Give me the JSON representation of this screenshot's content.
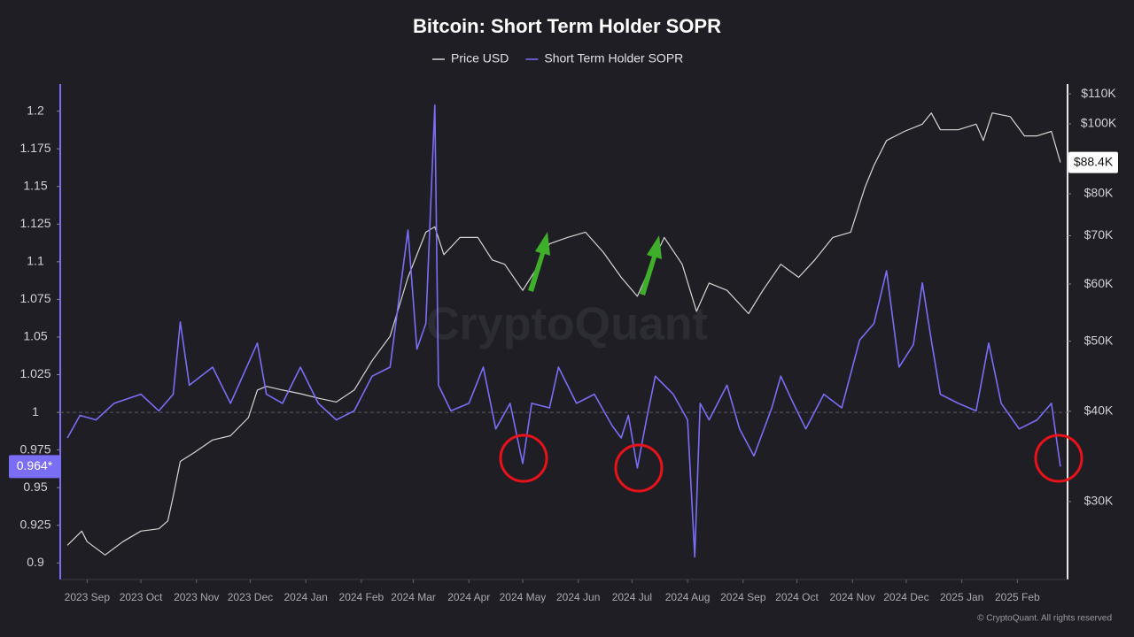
{
  "chart_data": {
    "type": "line",
    "title": "Bitcoin: Short Term Holder SOPR",
    "watermark": "CryptoQuant",
    "footer": "© CryptoQuant. All rights reserved",
    "background": "#1e1e24",
    "xlim": [
      -15,
      547
    ],
    "xticks": [
      {
        "value": 0,
        "label": "2023 Sep"
      },
      {
        "value": 30,
        "label": "2023 Oct"
      },
      {
        "value": 61,
        "label": "2023 Nov"
      },
      {
        "value": 91,
        "label": "2023 Dec"
      },
      {
        "value": 122,
        "label": "2024 Jan"
      },
      {
        "value": 153,
        "label": "2024 Feb"
      },
      {
        "value": 182,
        "label": "2024 Mar"
      },
      {
        "value": 213,
        "label": "2024 Apr"
      },
      {
        "value": 243,
        "label": "2024 May"
      },
      {
        "value": 274,
        "label": "2024 Jun"
      },
      {
        "value": 304,
        "label": "2024 Jul"
      },
      {
        "value": 335,
        "label": "2024 Aug"
      },
      {
        "value": 366,
        "label": "2024 Sep"
      },
      {
        "value": 396,
        "label": "2024 Oct"
      },
      {
        "value": 427,
        "label": "2024 Nov"
      },
      {
        "value": 457,
        "label": "2024 Dec"
      },
      {
        "value": 488,
        "label": "2025 Jan"
      },
      {
        "value": 519,
        "label": "2025 Feb"
      }
    ],
    "ylim": [
      0.889,
      1.218
    ],
    "yticks": [
      0.9,
      0.925,
      0.95,
      0.975,
      1,
      1.025,
      1.05,
      1.075,
      1.1,
      1.125,
      1.15,
      1.175,
      1.2
    ],
    "y2lim": [
      23400,
      113500
    ],
    "y2scale": "log",
    "y2ticks": [
      {
        "value": 30000,
        "label": "$30K"
      },
      {
        "value": 40000,
        "label": "$40K"
      },
      {
        "value": 50000,
        "label": "$50K"
      },
      {
        "value": 60000,
        "label": "$60K"
      },
      {
        "value": 70000,
        "label": "$70K"
      },
      {
        "value": 80000,
        "label": "$80K"
      },
      {
        "value": 100000,
        "label": "$100K"
      },
      {
        "value": 110000,
        "label": "$110K"
      }
    ],
    "hline": 1,
    "series": [
      {
        "name": "Price USD",
        "color": "#d6d6d6",
        "axis": "y2",
        "last_value_label": "$88.4K",
        "x": [
          -11,
          -3,
          0,
          10,
          20,
          30,
          40,
          45,
          48,
          52,
          60,
          70,
          80,
          90,
          95,
          100,
          109,
          119,
          129,
          139,
          149,
          159,
          169,
          179,
          189,
          194,
          199,
          208,
          218,
          226,
          233,
          243,
          250,
          258,
          268,
          278,
          288,
          298,
          307,
          315,
          322,
          332,
          340,
          347,
          357,
          369,
          377,
          387,
          397,
          406,
          416,
          426,
          434,
          439,
          446,
          456,
          466,
          471,
          476,
          486,
          496,
          500,
          505,
          515,
          523,
          530,
          538,
          543
        ],
        "values": [
          26100,
          27300,
          26400,
          25300,
          26400,
          27300,
          27500,
          28200,
          30500,
          34100,
          35100,
          36500,
          37000,
          39200,
          42800,
          43300,
          42800,
          42300,
          41700,
          41200,
          42800,
          47000,
          50800,
          61300,
          70800,
          72000,
          65900,
          69600,
          69600,
          64800,
          63900,
          58800,
          62600,
          68200,
          69600,
          70800,
          66400,
          61300,
          57700,
          63900,
          69600,
          63900,
          55000,
          60200,
          58800,
          54600,
          58800,
          63900,
          61300,
          64800,
          69600,
          70800,
          81700,
          87600,
          94800,
          97600,
          99900,
          103500,
          98100,
          98100,
          99900,
          94800,
          103500,
          102300,
          96200,
          96200,
          97600,
          88400
        ]
      },
      {
        "name": "Short Term Holder SOPR",
        "color": "#7b6ef6",
        "axis": "y",
        "last_value_label": "0.964*",
        "x": [
          -11,
          -4,
          5,
          15,
          30,
          40,
          48,
          52,
          57,
          70,
          80,
          95,
          100,
          109,
          119,
          129,
          139,
          149,
          159,
          169,
          179,
          184,
          189,
          194,
          196,
          203,
          213,
          221,
          228,
          236,
          243,
          248,
          258,
          263,
          273,
          283,
          293,
          298,
          302,
          307,
          312,
          317,
          327,
          335,
          339,
          342,
          347,
          357,
          364,
          372,
          382,
          387,
          394,
          401,
          411,
          421,
          431,
          439,
          446,
          453,
          461,
          466,
          471,
          476,
          486,
          496,
          503,
          510,
          520,
          530,
          538,
          543
        ],
        "values": [
          0.983,
          0.998,
          0.995,
          1.006,
          1.012,
          1.001,
          1.012,
          1.06,
          1.018,
          1.03,
          1.006,
          1.046,
          1.012,
          1.006,
          1.03,
          1.006,
          0.995,
          1.001,
          1.024,
          1.03,
          1.121,
          1.042,
          1.059,
          1.204,
          1.018,
          1.001,
          1.006,
          1.03,
          0.989,
          1.006,
          0.966,
          1.006,
          1.003,
          1.03,
          1.006,
          1.012,
          0.991,
          0.983,
          0.998,
          0.963,
          0.995,
          1.024,
          1.012,
          0.995,
          0.904,
          1.006,
          0.995,
          1.018,
          0.989,
          0.971,
          1.003,
          1.024,
          1.006,
          0.989,
          1.012,
          1.003,
          1.048,
          1.059,
          1.094,
          1.03,
          1.045,
          1.086,
          1.048,
          1.012,
          1.006,
          1.001,
          1.046,
          1.006,
          0.989,
          0.995,
          1.006,
          0.964
        ]
      }
    ]
  }
}
